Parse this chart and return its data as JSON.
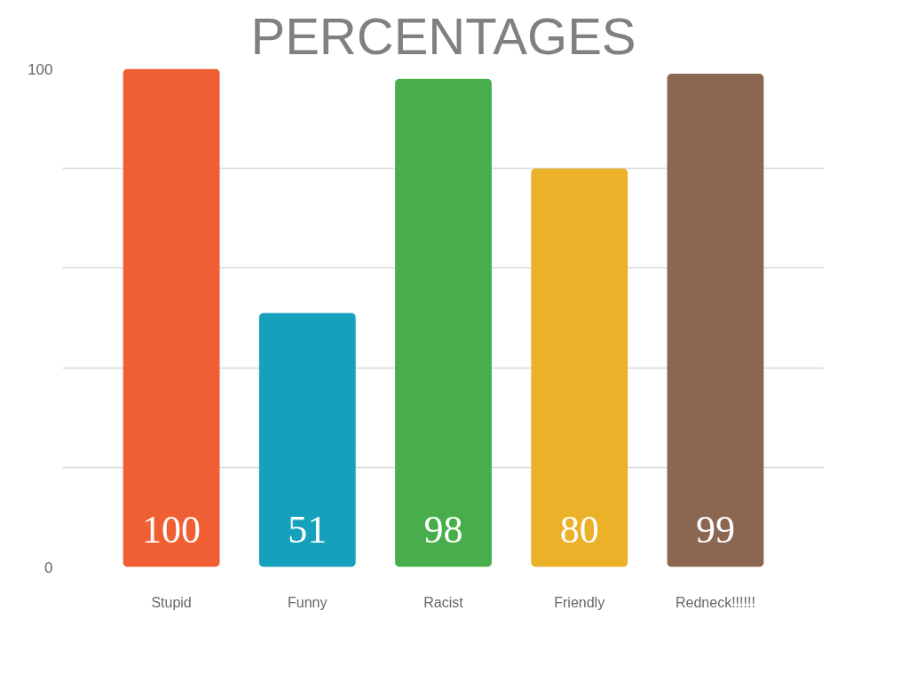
{
  "chart_data": {
    "type": "bar",
    "title": "PERCENTAGES",
    "categories": [
      "Stupid",
      "Funny",
      "Racist",
      "Friendly",
      "Redneck!!!!!!"
    ],
    "values": [
      100,
      51,
      98,
      80,
      99
    ],
    "colors": [
      "#f05f33",
      "#15a0bb",
      "#48ae4b",
      "#ebb128",
      "#8b6651"
    ],
    "ylim": [
      0,
      100
    ],
    "yticks": [
      0,
      {
        "value": 20,
        "label": null
      },
      {
        "value": 40,
        "label": null
      },
      {
        "value": 60,
        "label": null
      },
      {
        "value": 80,
        "label": null
      },
      100
    ],
    "grid": "y",
    "data_labels": true
  }
}
